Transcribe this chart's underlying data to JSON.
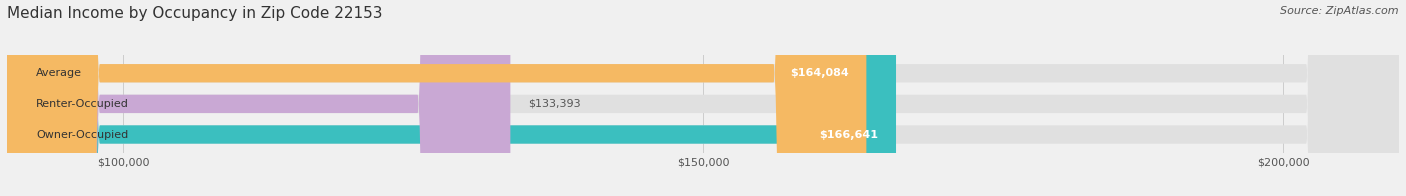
{
  "title": "Median Income by Occupancy in Zip Code 22153",
  "source": "Source: ZipAtlas.com",
  "categories": [
    "Owner-Occupied",
    "Renter-Occupied",
    "Average"
  ],
  "values": [
    166641,
    133393,
    164084
  ],
  "labels": [
    "$166,641",
    "$133,393",
    "$164,084"
  ],
  "bar_colors": [
    "#3bbfbf",
    "#c9a8d4",
    "#f5b963"
  ],
  "background_color": "#f0f0f0",
  "bar_bg_color": "#e0e0e0",
  "xlim": [
    90000,
    210000
  ],
  "xticks": [
    100000,
    150000,
    200000
  ],
  "xtick_labels": [
    "$100,000",
    "$150,000",
    "$200,000"
  ],
  "title_fontsize": 11,
  "source_fontsize": 8,
  "label_fontsize": 8,
  "tick_fontsize": 8,
  "bar_height": 0.6,
  "bar_label_inside": [
    true,
    false,
    true
  ]
}
